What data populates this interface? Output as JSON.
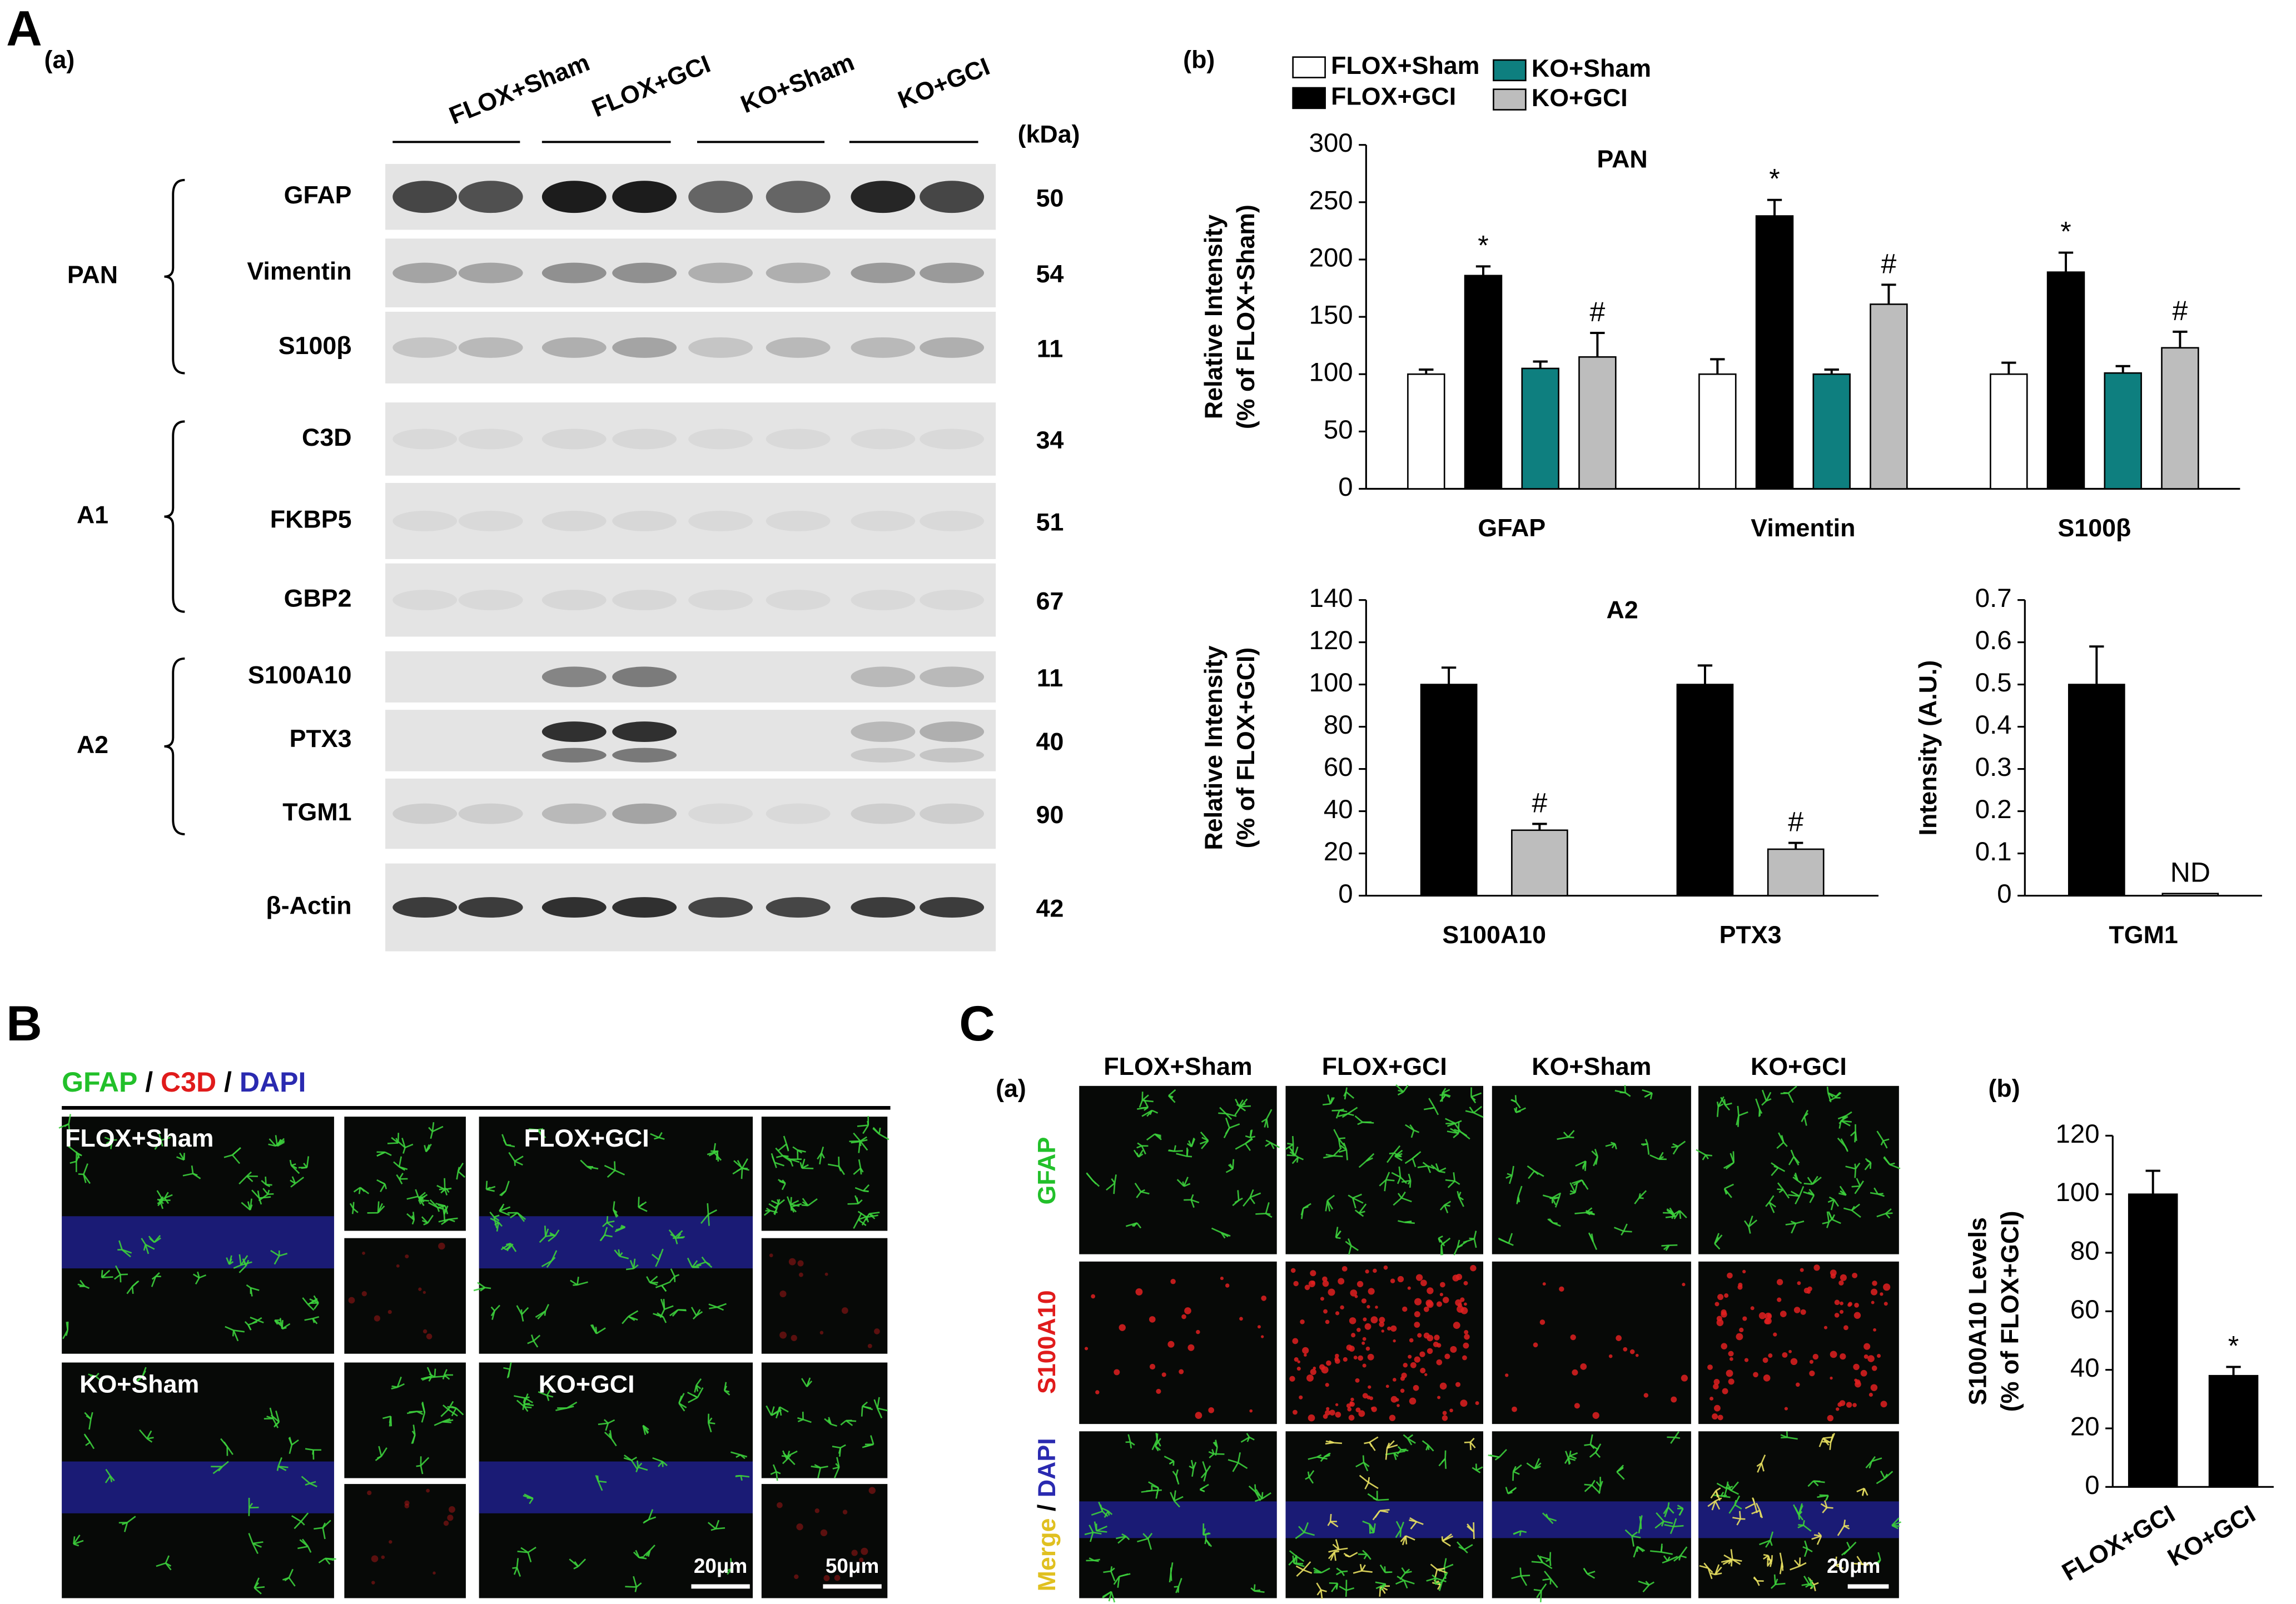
{
  "panel_labels": {
    "A": "A",
    "B": "B",
    "C": "C"
  },
  "blot": {
    "sub_label": "(a)",
    "conditions": [
      "FLOX+Sham",
      "FLOX+GCI",
      "KO+Sham",
      "KO+GCI"
    ],
    "unit": "(kDa)",
    "groups": [
      "PAN",
      "A1",
      "A2"
    ],
    "rows": [
      {
        "name": "GFAP",
        "kda": 50
      },
      {
        "name": "Vimentin",
        "kda": 54
      },
      {
        "name": "S100β",
        "kda": 11
      },
      {
        "name": "C3D",
        "kda": 34
      },
      {
        "name": "FKBP5",
        "kda": 51
      },
      {
        "name": "GBP2",
        "kda": 67
      },
      {
        "name": "S100A10",
        "kda": 11
      },
      {
        "name": "PTX3",
        "kda": 40
      },
      {
        "name": "TGM1",
        "kda": 90
      },
      {
        "name": "β-Actin",
        "kda": 42
      }
    ]
  },
  "chart_data": [
    {
      "type": "bar",
      "sub_label": "(b)",
      "title": "PAN",
      "ylabel": [
        "Relative Intensity",
        "(% of FLOX+Sham)"
      ],
      "categories": [
        "GFAP",
        "Vimentin",
        "S100β"
      ],
      "series": [
        {
          "name": "FLOX+Sham",
          "color": "#ffffff",
          "values": [
            100,
            100,
            100
          ],
          "errors": [
            4,
            13,
            10
          ]
        },
        {
          "name": "FLOX+GCI",
          "color": "#000000",
          "values": [
            186,
            238,
            189
          ],
          "errors": [
            8,
            14,
            17
          ],
          "annotation": "*"
        },
        {
          "name": "KO+Sham",
          "color": "#0e7f7f",
          "values": [
            105,
            100,
            101
          ],
          "errors": [
            6,
            4,
            6
          ]
        },
        {
          "name": "KO+GCI",
          "color": "#bdbdbd",
          "values": [
            115,
            161,
            123
          ],
          "errors": [
            21,
            17,
            14
          ],
          "annotation": "#"
        }
      ],
      "ylim": [
        0,
        300
      ],
      "yticks": [
        0,
        50,
        100,
        150,
        200,
        250,
        300
      ]
    },
    {
      "type": "bar",
      "title": "A2",
      "ylabel": [
        "Relative Intensity",
        "(% of FLOX+GCI)"
      ],
      "categories": [
        "S100A10",
        "PTX3"
      ],
      "series": [
        {
          "color": "#000000",
          "values": [
            100,
            100
          ],
          "errors": [
            8,
            9
          ]
        },
        {
          "color": "#bdbdbd",
          "values": [
            31,
            22
          ],
          "errors": [
            3,
            3
          ],
          "annotation": "#"
        }
      ],
      "ylim": [
        0,
        140
      ],
      "yticks": [
        0,
        20,
        40,
        60,
        80,
        100,
        120,
        140
      ]
    },
    {
      "type": "bar",
      "ylabel": [
        "Intensity (A.U.)"
      ],
      "categories": [
        "TGM1"
      ],
      "series": [
        {
          "color": "#000000",
          "values": [
            0.5
          ],
          "errors": [
            0.09
          ]
        },
        {
          "color": "#bdbdbd",
          "values": [
            0.005
          ],
          "annotation": "ND"
        }
      ],
      "ylim": [
        0,
        0.7
      ],
      "yticks": [
        0,
        0.1,
        0.2,
        0.3,
        0.4,
        0.5,
        0.6,
        0.7
      ]
    },
    {
      "type": "bar",
      "sub_label": "(b)",
      "ylabel": [
        "S100A10 Levels",
        "(% of FLOX+GCI)"
      ],
      "categories": [
        "FLOX+GCI",
        "KO+GCI"
      ],
      "series": [
        {
          "color": "#000000",
          "values": [
            100,
            38
          ],
          "errors": [
            8,
            3
          ]
        }
      ],
      "annotations": [
        {
          "index": 1,
          "text": "*"
        }
      ],
      "ylim": [
        0,
        120
      ],
      "yticks": [
        0,
        20,
        40,
        60,
        80,
        100,
        120
      ]
    }
  ],
  "panel_b": {
    "stain": [
      "GFAP",
      "/",
      "C3D",
      "/",
      "DAPI"
    ],
    "conditions": [
      "FLOX+Sham",
      "FLOX+GCI",
      "KO+Sham",
      "KO+GCI"
    ],
    "scale_bars": [
      "20μm",
      "50μm"
    ]
  },
  "panel_c": {
    "sub_label": "(a)",
    "conditions": [
      "FLOX+Sham",
      "FLOX+GCI",
      "KO+Sham",
      "KO+GCI"
    ],
    "rows": [
      [
        "GFAP"
      ],
      [
        "S100A10"
      ],
      [
        "Merge",
        "/",
        "DAPI"
      ]
    ],
    "scale_bar": "20μm"
  }
}
